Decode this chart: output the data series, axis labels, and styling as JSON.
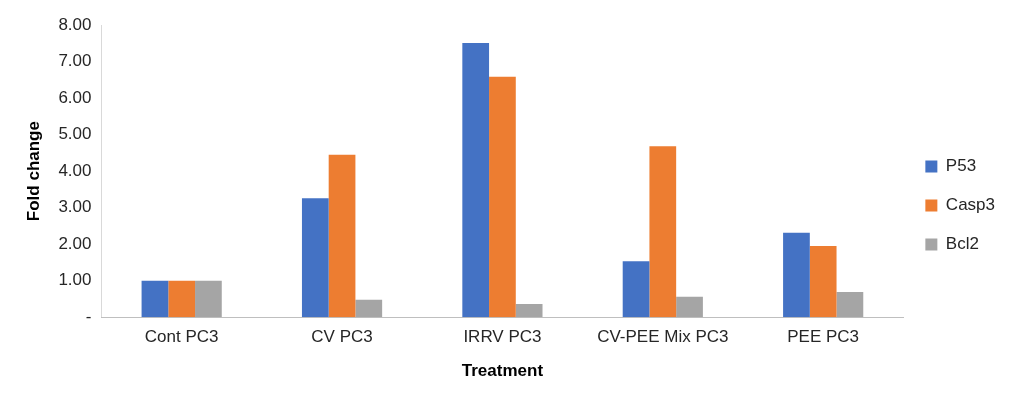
{
  "chart_data": {
    "type": "bar",
    "xlabel": "Treatment",
    "ylabel": "Fold change",
    "categories": [
      "Cont PC3",
      "CV PC3",
      "IRRV PC3",
      "CV-PEE Mix PC3",
      "PEE PC3"
    ],
    "series": [
      {
        "name": "P53",
        "color": "#4472c4",
        "values": [
          1.0,
          3.26,
          7.51,
          1.53,
          2.31
        ]
      },
      {
        "name": "Casp3",
        "color": "#ed7d31",
        "values": [
          1.0,
          4.45,
          6.58,
          4.68,
          1.95
        ]
      },
      {
        "name": "Bcl2",
        "color": "#a5a5a5",
        "values": [
          1.0,
          0.48,
          0.36,
          0.56,
          0.69
        ]
      }
    ],
    "ylim": [
      0,
      8
    ],
    "yticks": [
      {
        "value": 0,
        "label": "-"
      },
      {
        "value": 1,
        "label": "1.00"
      },
      {
        "value": 2,
        "label": "2.00"
      },
      {
        "value": 3,
        "label": "3.00"
      },
      {
        "value": 4,
        "label": "4.00"
      },
      {
        "value": 5,
        "label": "5.00"
      },
      {
        "value": 6,
        "label": "6.00"
      },
      {
        "value": 7,
        "label": "7.00"
      },
      {
        "value": 8,
        "label": "8.00"
      }
    ],
    "grid": false,
    "legend": "right"
  }
}
